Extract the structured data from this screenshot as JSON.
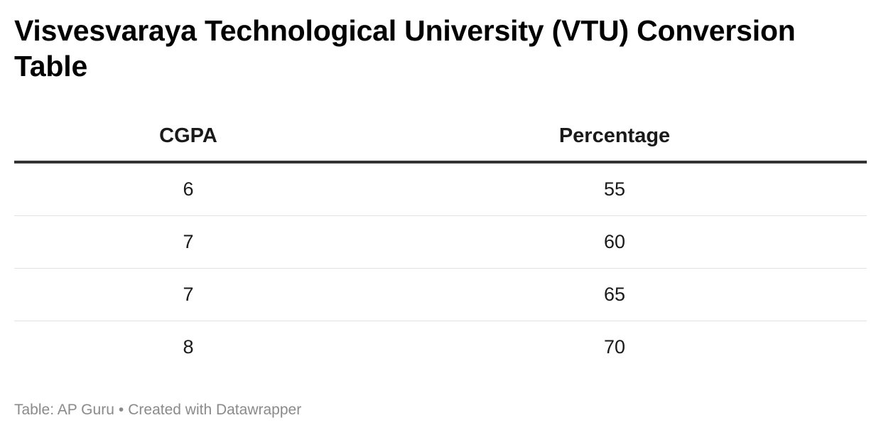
{
  "chart_data": {
    "type": "table",
    "title": "Visvesvaraya Technological University (VTU) Conversion Table",
    "columns": [
      "CGPA",
      "Percentage"
    ],
    "rows": [
      [
        "6",
        "55"
      ],
      [
        "7",
        "60"
      ],
      [
        "7",
        "65"
      ],
      [
        "8",
        "70"
      ]
    ]
  },
  "footer": {
    "source": "Table: AP Guru",
    "separator": "•",
    "credit": "Created with Datawrapper"
  },
  "colors": {
    "text": "#1a1a1a",
    "header_rule": "#333333",
    "row_rule": "#e2e2e2",
    "footer_text": "#8a8a8a"
  }
}
